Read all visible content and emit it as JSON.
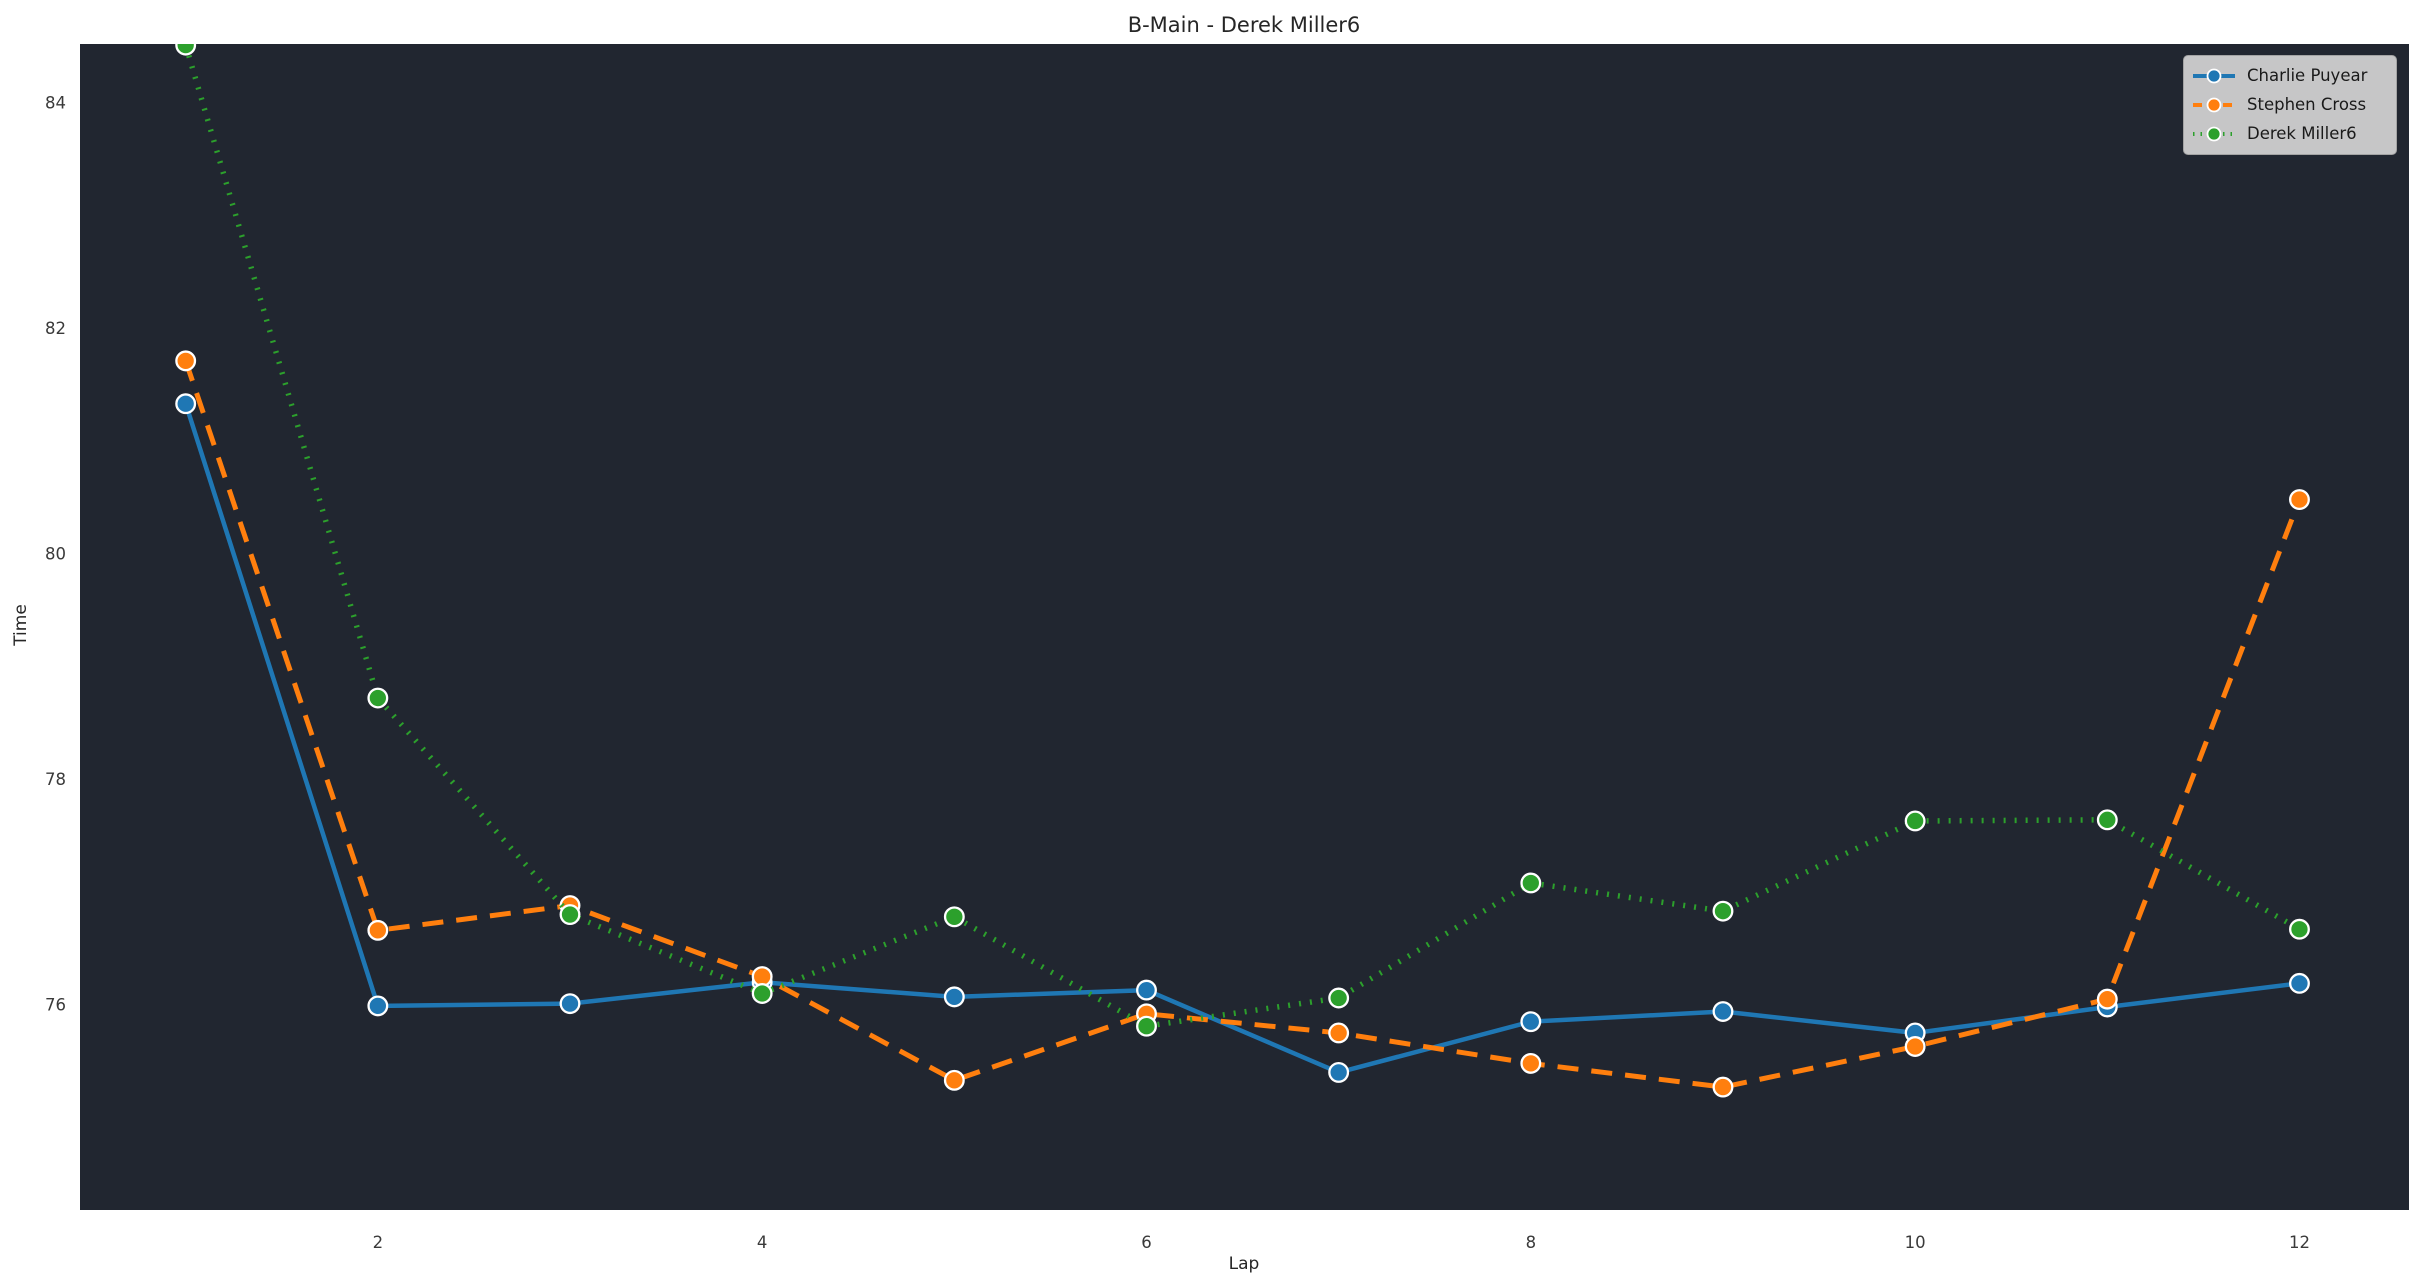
{
  "chart_data": {
    "type": "line",
    "title": "B-Main - Derek Miller6",
    "xlabel": "Lap",
    "ylabel": "Time",
    "x": [
      1,
      2,
      3,
      4,
      5,
      6,
      7,
      8,
      9,
      10,
      11,
      12
    ],
    "series": [
      {
        "name": "Charlie Puyear",
        "color": "#1f77b4",
        "style": "solid",
        "values": [
          81.33,
          75.99,
          76.01,
          76.2,
          76.07,
          76.13,
          75.4,
          75.85,
          75.94,
          75.75,
          75.98,
          76.19
        ]
      },
      {
        "name": "Stephen Cross",
        "color": "#ff7f0e",
        "style": "dashed",
        "values": [
          81.71,
          76.66,
          76.88,
          76.25,
          75.33,
          75.92,
          75.75,
          75.48,
          75.27,
          75.63,
          76.05,
          80.48
        ]
      },
      {
        "name": "Derek Miller6",
        "color": "#2ca02c",
        "style": "dotted",
        "values": [
          84.51,
          78.72,
          76.8,
          76.1,
          76.78,
          75.81,
          76.06,
          77.08,
          76.83,
          77.63,
          77.64,
          76.67
        ]
      }
    ],
    "xticks": [
      2,
      4,
      6,
      8,
      10,
      12
    ],
    "yticks": [
      84,
      82,
      80,
      78,
      76
    ],
    "xlim": [
      0.45,
      12.57
    ],
    "ylim": [
      74.18,
      84.52
    ],
    "grid": false,
    "legend_position": "upper right",
    "colors": {
      "figure_bg": "#ffffff",
      "plot_bg": "#212630",
      "title_text": "#262626",
      "tick_label": "#3a3a3a",
      "legend_bg": "#d3d3d3",
      "legend_border": "#a3a3a3",
      "marker_edge": "#ffffff"
    }
  }
}
